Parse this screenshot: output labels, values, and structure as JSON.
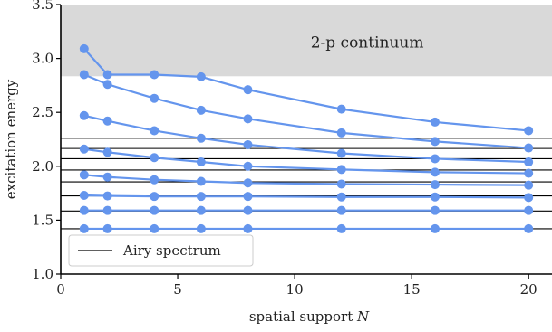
{
  "chart_data": {
    "type": "line",
    "xlabel": "spatial support",
    "xlabel_var": "N",
    "ylabel": "excitation energy",
    "xlim": [
      0,
      21
    ],
    "ylim": [
      1.0,
      3.5
    ],
    "xticks": [
      0,
      5,
      10,
      15,
      20
    ],
    "yticks": [
      1.0,
      1.5,
      2.0,
      2.5,
      3.0,
      3.5
    ],
    "xtick_labels": [
      "0",
      "5",
      "10",
      "15",
      "20"
    ],
    "ytick_labels": [
      "1.0",
      "1.5",
      "2.0",
      "2.5",
      "3.0",
      "3.5"
    ],
    "grid": false,
    "continuum": {
      "label": "2-p continuum",
      "ymin": 2.835,
      "ymax": 3.5,
      "color": "#d9d9d9"
    },
    "airy_lines": [
      1.42,
      1.585,
      1.725,
      1.855,
      1.965,
      2.07,
      2.165,
      2.26
    ],
    "legend": {
      "label": "Airy spectrum",
      "position": "lower-left"
    },
    "series_color": "#6495ED",
    "x": [
      1,
      2,
      4,
      6,
      8,
      12,
      16,
      20
    ],
    "series": [
      {
        "values": [
          1.42,
          1.42,
          1.42,
          1.42,
          1.42,
          1.42,
          1.42,
          1.42
        ]
      },
      {
        "values": [
          1.59,
          1.59,
          1.59,
          1.59,
          1.59,
          1.59,
          1.59,
          1.59
        ]
      },
      {
        "values": [
          1.73,
          1.725,
          1.72,
          1.72,
          1.72,
          1.715,
          1.715,
          1.71
        ]
      },
      {
        "values": [
          1.92,
          1.9,
          1.875,
          1.86,
          1.845,
          1.835,
          1.83,
          1.825
        ]
      },
      {
        "values": [
          2.16,
          2.13,
          2.08,
          2.04,
          2.0,
          1.97,
          1.945,
          1.935
        ]
      },
      {
        "values": [
          2.47,
          2.42,
          2.33,
          2.26,
          2.2,
          2.12,
          2.07,
          2.04
        ]
      },
      {
        "values": [
          2.85,
          2.76,
          2.63,
          2.52,
          2.44,
          2.31,
          2.23,
          2.17
        ]
      },
      {
        "values": [
          3.09,
          2.85,
          2.85,
          2.83,
          2.71,
          2.53,
          2.41,
          2.33
        ]
      }
    ]
  }
}
